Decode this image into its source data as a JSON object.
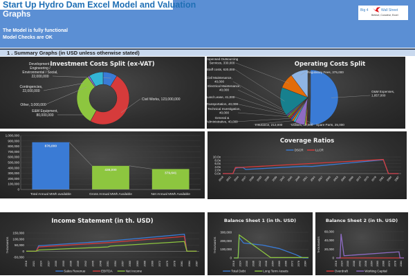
{
  "header": {
    "title": "Start Up Hydro Dam Excel Model and Valuation",
    "subtitle": "Graphs",
    "status_lines": [
      "The Model is fully functional",
      "Model Checks are OK"
    ],
    "logo": {
      "left": "Big 4",
      "right": "Wall Street",
      "tagline": "Believe, Conceive, Excel"
    }
  },
  "section": {
    "title": "1 .  Summary Graphs (in USD unless otherwise stated)"
  },
  "colors": {
    "header_bg": "#5b8fd4",
    "blue": "#3a7bd5",
    "red": "#d63b3b",
    "green": "#8dc63f",
    "purple": "#8e6cc4",
    "orange": "#e36c09",
    "teal": "#17808e"
  },
  "chart_data": [
    {
      "type": "pie",
      "variant": "donut",
      "title": "Investment Costs Split (ex-VAT)",
      "slices": [
        {
          "label": "Development / Engineering / Environmental / Social",
          "value": 22000000,
          "text": [
            "Development /",
            "Engineering /",
            "Environmental / Social,",
            "22,000,000"
          ],
          "color": "#3a7bd5"
        },
        {
          "label": "Civil Works",
          "value": 123000000,
          "text": [
            "Civil Works, 123,000,000"
          ],
          "color": "#d63b3b"
        },
        {
          "label": "E&M Equipment",
          "value": 80000000,
          "text": [
            "E&M Equipment,",
            "80,000,000"
          ],
          "color": "#8dc63f"
        },
        {
          "label": "Other",
          "value": 3000000,
          "text": [
            "Other, 3,000,000"
          ],
          "color": "#8e6cc4"
        },
        {
          "label": "Contingencies",
          "value": 22000000,
          "text": [
            "Contingencies,",
            "22,000,000"
          ],
          "color": "#33b5d6"
        }
      ]
    },
    {
      "type": "pie",
      "title": "Operating Costs Split",
      "slices": [
        {
          "label": "O&M Expenses",
          "value": 1857000,
          "text": [
            "O&M Expenses,",
            "1,857,000"
          ],
          "color": "#3a7bd5"
        },
        {
          "label": "Spare Parts",
          "value": 25000,
          "text": [
            "Spare Parts, 25,000"
          ],
          "color": "#d63b3b"
        },
        {
          "label": "Utilities",
          "value": 30000,
          "text": [
            "Utilities, 30,000"
          ],
          "color": "#8dc63f"
        },
        {
          "label": "Insurance",
          "value": 212000,
          "text": [
            "Insurance, 212,000"
          ],
          "color": "#8e6cc4"
        },
        {
          "label": "General & Administrative",
          "value": 40000,
          "text": [
            "General &",
            "Administrative, 40,000"
          ],
          "color": "#33b5d6"
        },
        {
          "label": "Technical Investigation",
          "value": 40000,
          "text": [
            "Technical Investigation,",
            "40,000"
          ],
          "color": "#e36c09"
        },
        {
          "label": "Transportation",
          "value": 40000,
          "text": [
            "Transportation, 40,000"
          ],
          "color": "#2d5fa8"
        },
        {
          "label": "Land Lease",
          "value": 41000,
          "text": [
            "Land Lease, 41,000"
          ],
          "color": "#a52a2a"
        },
        {
          "label": "Electrical Maintenance",
          "value": 40000,
          "text": [
            "Electrical Maintenance,",
            "40,000"
          ],
          "color": "#6b8e23"
        },
        {
          "label": "Civil Maintenance",
          "value": 40000,
          "text": [
            "Civil Maintenance,",
            "40,000"
          ],
          "color": "#5e4a8a"
        },
        {
          "label": "Staff costs",
          "value": 620000,
          "text": [
            "Staff costs, 620,000"
          ],
          "color": "#17808e"
        },
        {
          "label": "Expensed Outsourcing Services",
          "value": 330000,
          "text": [
            "Expensed Outsourcing",
            "Services, 330,000"
          ],
          "color": "#e36c09"
        },
        {
          "label": "Regulatory Fees",
          "value": 375000,
          "text": [
            "Regulatory Fees, 375,000"
          ],
          "color": "#8fb4e3"
        }
      ]
    },
    {
      "type": "bar",
      "title": "",
      "categories": [
        "Total Annual MWh available",
        "Gross Annual MWh Available",
        "Net Annual MWh Available"
      ],
      "values": [
        876000,
        438000,
        379641
      ],
      "value_labels": [
        "876,000",
        "438,000",
        "379,641"
      ],
      "colors": [
        "#3a7bd5",
        "#8dc63f",
        "#8dc63f"
      ],
      "ylim": [
        0,
        1000000
      ],
      "yticks": [
        "0",
        "100,000",
        "200,000",
        "300,000",
        "400,000",
        "500,000",
        "600,000",
        "700,000",
        "800,000",
        "900,000",
        "1,000,000"
      ]
    },
    {
      "type": "line",
      "title": "Coverage Ratios",
      "x": [
        "2018",
        "2021",
        "2024",
        "2027",
        "2030",
        "2033",
        "2036",
        "2039",
        "2042",
        "2045",
        "2048",
        "2051",
        "2054",
        "2057",
        "2060",
        "2063",
        "2066",
        "2069",
        "2072",
        "2075",
        "2078",
        "2081",
        "2084",
        "2087"
      ],
      "ylim": [
        0,
        10
      ],
      "yticks": [
        "0.0x",
        "2.0x",
        "4.0x",
        "6.0x",
        "8.0x",
        "10.0x"
      ],
      "legend": "top",
      "series": [
        {
          "name": "DSCR",
          "color": "#3a7bd5",
          "points": [
            [
              2018,
              0
            ],
            [
              2022,
              0
            ],
            [
              2023,
              3.2
            ],
            [
              2024,
              3.5
            ],
            [
              2026,
              3.6
            ],
            [
              2027,
              2.5
            ],
            [
              2050,
              4.4
            ],
            [
              2053,
              4.3
            ],
            [
              2081,
              8.3
            ],
            [
              2083,
              0
            ],
            [
              2087,
              0
            ]
          ]
        },
        {
          "name": "LLCR",
          "color": "#d63b3b",
          "points": [
            [
              2018,
              0
            ],
            [
              2022,
              0
            ],
            [
              2023,
              3.7
            ],
            [
              2026,
              3.8
            ],
            [
              2081,
              8.5
            ],
            [
              2083,
              0
            ],
            [
              2087,
              0
            ]
          ]
        }
      ]
    },
    {
      "type": "line",
      "title": "Income Statement (in th. USD)",
      "ylabel": "THOUSANDS",
      "x": [
        "2018",
        "2021",
        "2024",
        "2027",
        "2030",
        "2033",
        "2036",
        "2039",
        "2042",
        "2045",
        "2048",
        "2051",
        "2054",
        "2057",
        "2060",
        "2063",
        "2066",
        "2069",
        "2072",
        "2075",
        "2078",
        "2081",
        "2084",
        "2087"
      ],
      "ylim": [
        -50000,
        150000
      ],
      "yticks": [
        "-50,000",
        "0",
        "50,000",
        "100,000",
        "150,000"
      ],
      "legend": "bottom",
      "series": [
        {
          "name": "Sales Revenue",
          "color": "#3a7bd5",
          "points": [
            [
              2018,
              0
            ],
            [
              2022,
              0
            ],
            [
              2023,
              45000
            ],
            [
              2052,
              85000
            ],
            [
              2082,
              140000
            ],
            [
              2083,
              0
            ],
            [
              2087,
              0
            ]
          ]
        },
        {
          "name": "EBITDA",
          "color": "#d63b3b",
          "points": [
            [
              2018,
              0
            ],
            [
              2022,
              0
            ],
            [
              2023,
              35000
            ],
            [
              2052,
              72000
            ],
            [
              2082,
              122000
            ],
            [
              2083,
              0
            ],
            [
              2087,
              0
            ]
          ]
        },
        {
          "name": "Net Income",
          "color": "#8dc63f",
          "points": [
            [
              2018,
              0
            ],
            [
              2022,
              0
            ],
            [
              2023,
              10000
            ],
            [
              2051,
              35000
            ],
            [
              2052,
              42000
            ],
            [
              2082,
              80000
            ],
            [
              2083,
              0
            ],
            [
              2087,
              0
            ]
          ]
        }
      ]
    },
    {
      "type": "line",
      "title": "Balance Sheet 1 (in th. USD)",
      "ylabel": "THOUSANDS",
      "x": [
        "2018",
        "2024",
        "2030",
        "2036",
        "2042",
        "2048",
        "2054",
        "2060",
        "2066",
        "2072",
        "2078",
        "2084"
      ],
      "ylim": [
        0,
        300000
      ],
      "yticks": [
        "0",
        "100,000",
        "200,000",
        "300,000"
      ],
      "legend": "bottom",
      "series": [
        {
          "name": "Total Debt",
          "color": "#3a7bd5",
          "points": [
            [
              2018,
              0
            ],
            [
              2022,
              0
            ],
            [
              2023,
              240000
            ],
            [
              2027,
              175000
            ],
            [
              2045,
              150000
            ],
            [
              2060,
              110000
            ],
            [
              2075,
              40000
            ],
            [
              2082,
              0
            ],
            [
              2087,
              0
            ]
          ]
        },
        {
          "name": "Long Term Assets",
          "color": "#8dc63f",
          "points": [
            [
              2018,
              0
            ],
            [
              2022,
              0
            ],
            [
              2023,
              270000
            ],
            [
              2052,
              5000
            ],
            [
              2087,
              5000
            ]
          ]
        }
      ]
    },
    {
      "type": "line",
      "title": "Balance Sheet 2 (in th. USD)",
      "ylabel": "THOUSANDS",
      "x": [
        "2018",
        "2024",
        "2030",
        "2036",
        "2042",
        "2048",
        "2054",
        "2060",
        "2066",
        "2072",
        "2078",
        "2084"
      ],
      "ylim": [
        0,
        60000
      ],
      "yticks": [
        "0",
        "20,000",
        "40,000",
        "60,000"
      ],
      "legend": "bottom",
      "series": [
        {
          "name": "Overdraft",
          "color": "#d63b3b",
          "points": [
            [
              2018,
              0
            ],
            [
              2087,
              0
            ]
          ]
        },
        {
          "name": "Working Capital",
          "color": "#8e6cc4",
          "points": [
            [
              2018,
              0
            ],
            [
              2022,
              0
            ],
            [
              2023,
              55000
            ],
            [
              2026,
              5000
            ],
            [
              2082,
              14000
            ],
            [
              2083,
              0
            ],
            [
              2087,
              0
            ]
          ]
        }
      ]
    }
  ]
}
